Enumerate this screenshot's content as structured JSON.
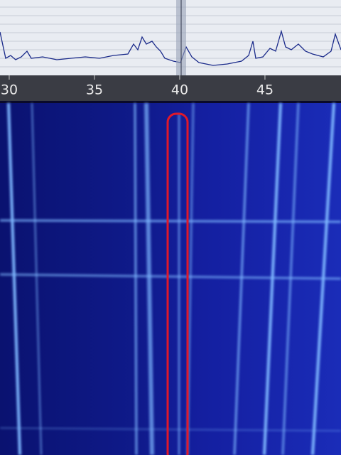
{
  "frequency_axis": {
    "xlim": [
      29.46,
      49.46
    ],
    "xticks": [
      30,
      35,
      40,
      45
    ]
  }
}
